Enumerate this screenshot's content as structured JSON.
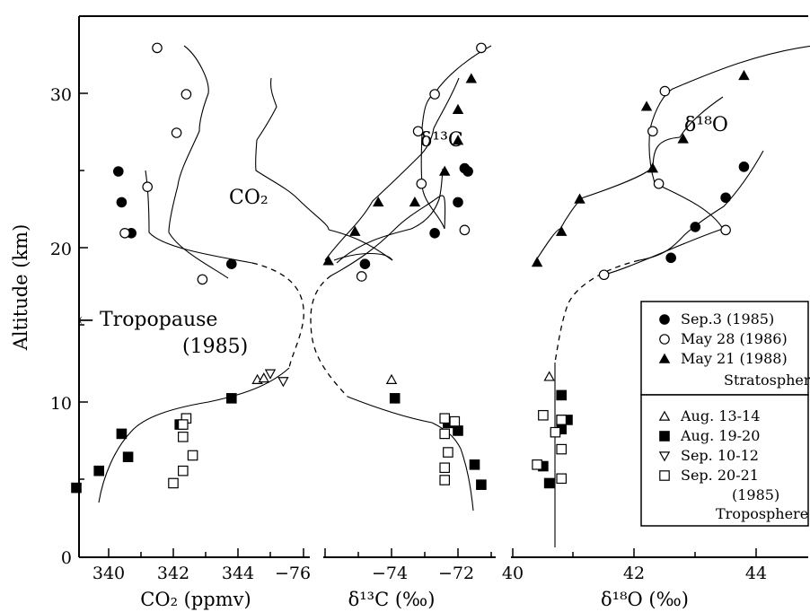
{
  "chart_data": {
    "type": "scatter",
    "ylabel": "Altitude (km)",
    "ylim": [
      0,
      35
    ],
    "yticks": [
      "0",
      "10",
      "20",
      "30"
    ],
    "panels": [
      {
        "xlabel": "CO₂ (ppmv)",
        "panel_label": "CO₂",
        "xlim": [
          338.2,
          345.7
        ],
        "xticks": [
          "340",
          "342",
          "344"
        ],
        "series": [
          {
            "name": "Sep.3 (1985)",
            "marker": "filled-circle",
            "x": [
              340.3,
              340.4,
              340.7,
              343.8
            ],
            "y": [
              25,
              23,
              21,
              19
            ]
          },
          {
            "name": "May 28 (1986)",
            "marker": "open-circle",
            "x": [
              341.5,
              342.4,
              342.1,
              341.2,
              340.5,
              342.9
            ],
            "y": [
              33,
              30,
              27.5,
              24,
              21,
              18
            ]
          },
          {
            "name": "Aug. 13-14",
            "marker": "open-triangle",
            "x": [
              344.6,
              344.8
            ],
            "y": [
              11.5,
              11.6
            ]
          },
          {
            "name": "Aug. 19-20",
            "marker": "filled-square",
            "x": [
              339.0,
              339.7,
              340.4,
              340.6,
              342.2,
              343.8
            ],
            "y": [
              4.5,
              5.6,
              8.0,
              6.5,
              8.6,
              10.3
            ]
          },
          {
            "name": "Sep. 10-12",
            "marker": "open-triangle-down",
            "x": [
              345.0,
              345.4
            ],
            "y": [
              11.9,
              11.4
            ]
          },
          {
            "name": "Sep. 20-21 (1985)",
            "marker": "open-square",
            "x": [
              342.0,
              342.3,
              342.6,
              342.3,
              342.4,
              342.3
            ],
            "y": [
              4.8,
              5.6,
              6.6,
              7.8,
              9.0,
              8.6
            ]
          }
        ]
      },
      {
        "xlabel": "δ¹³C (‰)",
        "panel_label": "δ¹³C",
        "xlim": [
          -76.8,
          -70.5
        ],
        "xticks": [
          "−76",
          "−74",
          "−72"
        ],
        "series": [
          {
            "name": "Sep.3 (1985)",
            "marker": "filled-circle",
            "x": [
              -74.8,
              -72.7,
              -72.0,
              -71.7,
              -71.8
            ],
            "y": [
              19,
              21,
              23,
              25,
              25.2
            ]
          },
          {
            "name": "May 28 (1986)",
            "marker": "open-circle",
            "x": [
              -74.9,
              -71.8,
              -73.1,
              -73.2,
              -72.7,
              -71.3
            ],
            "y": [
              18.2,
              21.2,
              24.2,
              27.6,
              30,
              33
            ]
          },
          {
            "name": "May 21 (1988)",
            "marker": "filled-triangle",
            "x": [
              -75.9,
              -75.1,
              -74.4,
              -73.3,
              -72.4,
              -72.0,
              -72.0,
              -71.6
            ],
            "y": [
              19.2,
              21.1,
              23.0,
              23.0,
              25.0,
              27.0,
              29.0,
              31.0
            ]
          },
          {
            "name": "Aug. 13-14",
            "marker": "open-triangle",
            "x": [
              -74.0
            ],
            "y": [
              11.5
            ]
          },
          {
            "name": "Aug. 19-20",
            "marker": "filled-square",
            "x": [
              -73.9,
              -72.3,
              -72.0,
              -71.5,
              -71.3
            ],
            "y": [
              10.3,
              8.7,
              8.2,
              6.0,
              4.7
            ]
          },
          {
            "name": "Sep. 20-21 (1985)",
            "marker": "open-square",
            "x": [
              -72.4,
              -72.4,
              -72.3,
              -72.4,
              -72.4,
              -72.1
            ],
            "y": [
              5.0,
              5.8,
              6.8,
              8.0,
              9.0,
              8.8
            ]
          }
        ]
      },
      {
        "xlabel": "δ¹⁸O (‰)",
        "panel_label": "δ¹⁸O",
        "xlim": [
          39.8,
          45.3
        ],
        "xticks": [
          "40",
          "42",
          "44"
        ],
        "series": [
          {
            "name": "Sep.3 (1985)",
            "marker": "filled-circle",
            "x": [
              42.6,
              43.0,
              43.5,
              43.8
            ],
            "y": [
              19.4,
              21.4,
              23.3,
              25.3
            ]
          },
          {
            "name": "May 28 (1986)",
            "marker": "open-circle",
            "x": [
              41.5,
              43.5,
              42.4,
              42.3,
              42.5,
              45.0
            ],
            "y": [
              18.3,
              21.2,
              24.2,
              27.6,
              30.2,
              33.0
            ]
          },
          {
            "name": "May 21 (1988)",
            "marker": "filled-triangle",
            "x": [
              40.4,
              40.8,
              41.1,
              42.3,
              42.8,
              42.2,
              43.8
            ],
            "y": [
              19.1,
              21.1,
              23.2,
              25.2,
              27.1,
              29.2,
              31.2
            ]
          },
          {
            "name": "Aug. 13-14",
            "marker": "open-triangle",
            "x": [
              40.6
            ],
            "y": [
              11.7
            ]
          },
          {
            "name": "Aug. 19-20",
            "marker": "filled-square",
            "x": [
              40.6,
              40.5,
              40.8,
              40.8,
              40.9
            ],
            "y": [
              4.8,
              5.9,
              8.3,
              10.5,
              8.9
            ]
          },
          {
            "name": "Sep. 20-21 (1985)",
            "marker": "open-square",
            "x": [
              40.8,
              40.4,
              40.8,
              40.7,
              40.8,
              40.5,
              40.8
            ],
            "y": [
              5.1,
              6.0,
              7.0,
              8.1,
              8.9,
              9.2,
              8.9
            ]
          }
        ]
      }
    ],
    "annotations": {
      "tropopause_line1": "Tropopause",
      "tropopause_line2": "(1985)",
      "tropopause_altitude": 15.3
    },
    "legend": {
      "position": "right",
      "stratosphere_heading": "Stratosphere",
      "troposphere_heading": "Troposphere",
      "stratosphere_items": [
        "Sep.3 (1985)",
        "May 28 (1986)",
        "May 21 (1988)"
      ],
      "troposphere_items": [
        "Aug. 13-14",
        "Aug. 19-20",
        "Sep. 10-12",
        "Sep. 20-21"
      ],
      "troposphere_year": "(1985)"
    }
  }
}
